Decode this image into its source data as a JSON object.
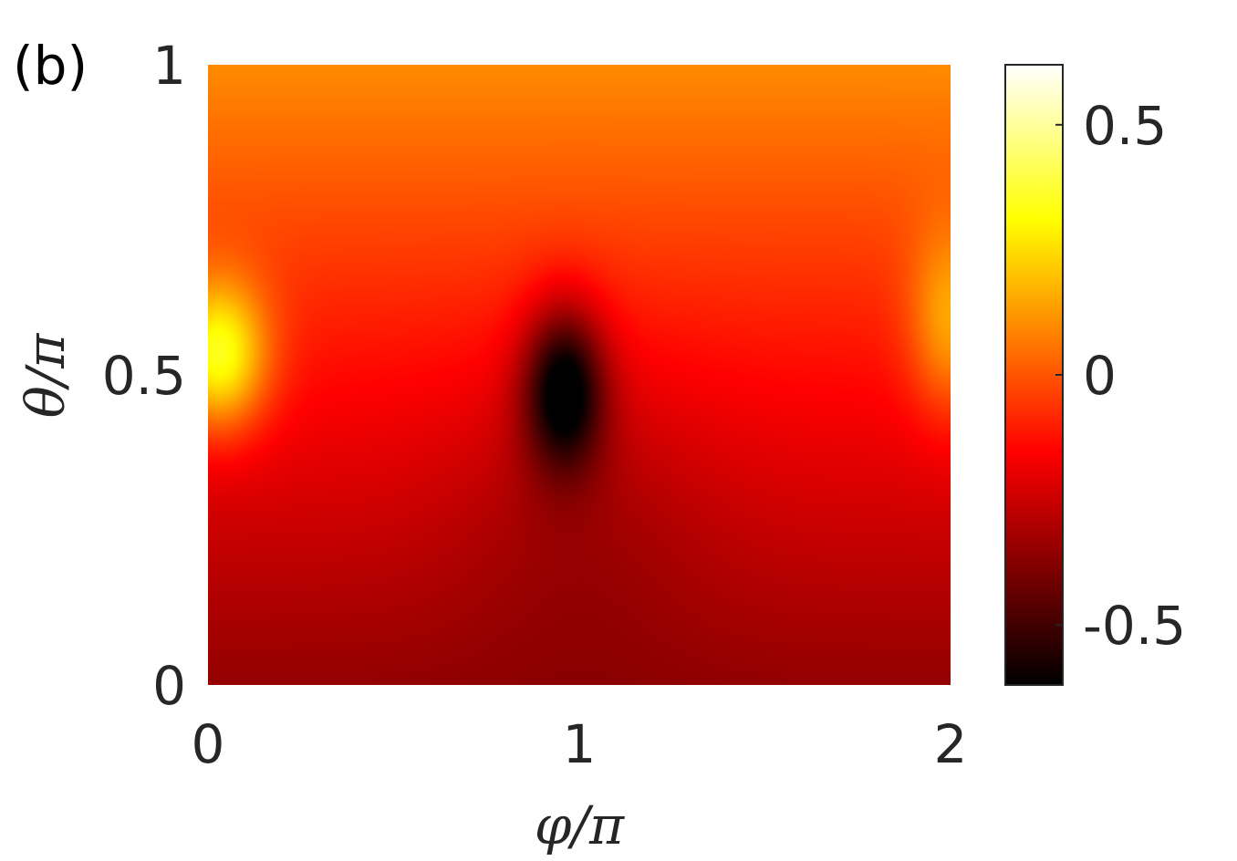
{
  "panel_label": "(b)",
  "chart_data": {
    "type": "heatmap",
    "title": "",
    "xlabel": "φ/π",
    "ylabel": "θ/π",
    "xlim": [
      0,
      2
    ],
    "ylim": [
      0,
      1
    ],
    "x_ticks": [
      "0",
      "1",
      "2"
    ],
    "y_ticks": [
      "0",
      "0.5",
      "1"
    ],
    "x_tick_values": [
      0,
      1,
      2
    ],
    "y_tick_values": [
      0,
      0.5,
      1
    ],
    "colormap": "hot",
    "colorbar": {
      "range": [
        -0.62,
        0.62
      ],
      "ticks": [
        -0.5,
        0,
        0.5
      ],
      "tick_labels": [
        "-0.5",
        "0",
        "0.5"
      ]
    },
    "features": [
      {
        "kind": "minimum",
        "x": 0.96,
        "y": 0.48,
        "value": -0.62
      },
      {
        "kind": "maximum",
        "x": 0.03,
        "y": 0.53,
        "value": 0.62
      },
      {
        "kind": "maximum",
        "x": 2.0,
        "y": 0.58,
        "value": 0.4
      }
    ],
    "colors": {
      "high": "#ffffff",
      "mid_high": "#ffff00",
      "mid": "#ff5500",
      "low": "#cc0000",
      "min": "#000000"
    }
  }
}
